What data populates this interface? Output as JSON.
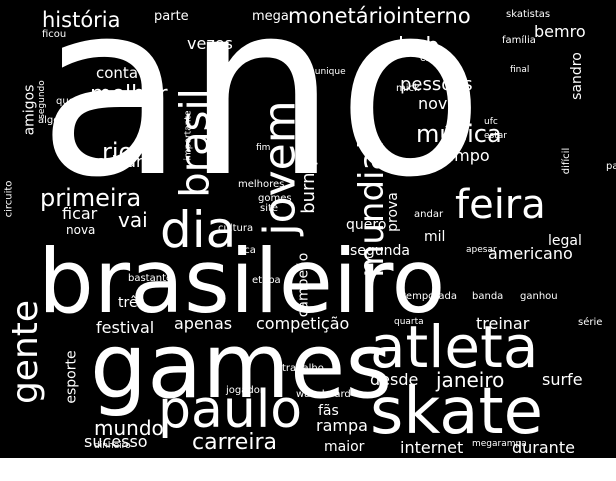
{
  "word_cloud": {
    "background": "#000000",
    "text_color": "#ffffff",
    "words": [
      {
        "key": "ano",
        "text": "ano"
      },
      {
        "key": "brasileiro",
        "text": "brasileiro"
      },
      {
        "key": "games",
        "text": "games"
      },
      {
        "key": "skate",
        "text": "skate"
      },
      {
        "key": "atleta",
        "text": "atleta"
      },
      {
        "key": "paulo",
        "text": "paulo"
      },
      {
        "key": "dia",
        "text": "dia"
      },
      {
        "key": "jovem",
        "text": "jovem"
      },
      {
        "key": "brasil",
        "text": "brasil"
      },
      {
        "key": "mundial",
        "text": "mundial"
      },
      {
        "key": "feira",
        "text": "feira"
      },
      {
        "key": "gente",
        "text": "gente"
      },
      {
        "key": "monetariointerno",
        "text": "monetáriointerno"
      },
      {
        "key": "historia",
        "text": "história"
      },
      {
        "key": "parte",
        "text": "parte"
      },
      {
        "key": "mega",
        "text": "mega"
      },
      {
        "key": "skatistas",
        "text": "skatistas"
      },
      {
        "key": "ficou",
        "text": "ficou"
      },
      {
        "key": "vezes",
        "text": "vezes"
      },
      {
        "key": "bob",
        "text": "bob"
      },
      {
        "key": "bemro",
        "text": "bemro"
      },
      {
        "key": "sandro",
        "text": "sandro"
      },
      {
        "key": "familia",
        "text": "família"
      },
      {
        "key": "cidade",
        "text": "cidade"
      },
      {
        "key": "conta",
        "text": "conta"
      },
      {
        "key": "melhor",
        "text": "melhor"
      },
      {
        "key": "amigos",
        "text": "amigos"
      },
      {
        "key": "segundo",
        "text": "segundo"
      },
      {
        "key": "quer",
        "text": "quer"
      },
      {
        "key": "algo",
        "text": "algo"
      },
      {
        "key": "pessoas",
        "text": "pessoas"
      },
      {
        "key": "novo",
        "text": "novo"
      },
      {
        "key": "burnquist",
        "text": "burnquist"
      },
      {
        "key": "musica",
        "text": "música"
      },
      {
        "key": "tempo",
        "text": "tempo"
      },
      {
        "key": "final",
        "text": "final"
      },
      {
        "key": "mick",
        "text": "mick"
      },
      {
        "key": "ufc",
        "text": "ufc"
      },
      {
        "key": "estar",
        "text": "estar"
      },
      {
        "key": "munique",
        "text": "munique"
      },
      {
        "key": "importante",
        "text": "importante"
      },
      {
        "key": "fim",
        "text": "fim"
      },
      {
        "key": "dificil",
        "text": "difícil"
      },
      {
        "key": "rio",
        "text": "rio"
      },
      {
        "key": "edgard",
        "text": "edgard"
      },
      {
        "key": "circuito",
        "text": "circuito"
      },
      {
        "key": "primeira",
        "text": "primeira"
      },
      {
        "key": "ficar",
        "text": "ficar"
      },
      {
        "key": "nova",
        "text": "nova"
      },
      {
        "key": "vai",
        "text": "vai"
      },
      {
        "key": "melhores",
        "text": "melhores"
      },
      {
        "key": "gomes",
        "text": "gomes"
      },
      {
        "key": "site",
        "text": "site"
      },
      {
        "key": "cultura",
        "text": "cultura"
      },
      {
        "key": "quero",
        "text": "quero"
      },
      {
        "key": "andar",
        "text": "andar"
      },
      {
        "key": "prova",
        "text": "prova"
      },
      {
        "key": "mil",
        "text": "mil"
      },
      {
        "key": "segunda",
        "text": "segunda"
      },
      {
        "key": "pais",
        "text": "país"
      },
      {
        "key": "legal",
        "text": "legal"
      },
      {
        "key": "americano",
        "text": "americano"
      },
      {
        "key": "apesar",
        "text": "apesar"
      },
      {
        "key": "campeao",
        "text": "campeão"
      },
      {
        "key": "fica",
        "text": "fica"
      },
      {
        "key": "bastante",
        "text": "bastante"
      },
      {
        "key": "etapa",
        "text": "etapa"
      },
      {
        "key": "tres",
        "text": "três"
      },
      {
        "key": "temporada",
        "text": "temporada"
      },
      {
        "key": "banda",
        "text": "banda"
      },
      {
        "key": "ganhou",
        "text": "ganhou"
      },
      {
        "key": "festival",
        "text": "festival"
      },
      {
        "key": "apenas",
        "text": "apenas"
      },
      {
        "key": "competicao",
        "text": "competição"
      },
      {
        "key": "quarta",
        "text": "quarta"
      },
      {
        "key": "treinar",
        "text": "treinar"
      },
      {
        "key": "serie",
        "text": "série"
      },
      {
        "key": "esporte",
        "text": "esporte"
      },
      {
        "key": "trabalho",
        "text": "trabalho"
      },
      {
        "key": "jogador",
        "text": "jogador"
      },
      {
        "key": "desde",
        "text": "desde"
      },
      {
        "key": "janeiro",
        "text": "janeiro"
      },
      {
        "key": "surfe",
        "text": "surfe"
      },
      {
        "key": "mundo",
        "text": "mundo"
      },
      {
        "key": "sucesso",
        "text": "sucesso"
      },
      {
        "key": "wakeboard",
        "text": "wakeboard"
      },
      {
        "key": "fas",
        "text": "fãs"
      },
      {
        "key": "rampa",
        "text": "rampa"
      },
      {
        "key": "dinheiro",
        "text": "dinheiro"
      },
      {
        "key": "carreira",
        "text": "carreira"
      },
      {
        "key": "maior",
        "text": "maior"
      },
      {
        "key": "internet",
        "text": "internet"
      },
      {
        "key": "megarampa",
        "text": "megarampa"
      },
      {
        "key": "durante",
        "text": "durante"
      }
    ]
  }
}
